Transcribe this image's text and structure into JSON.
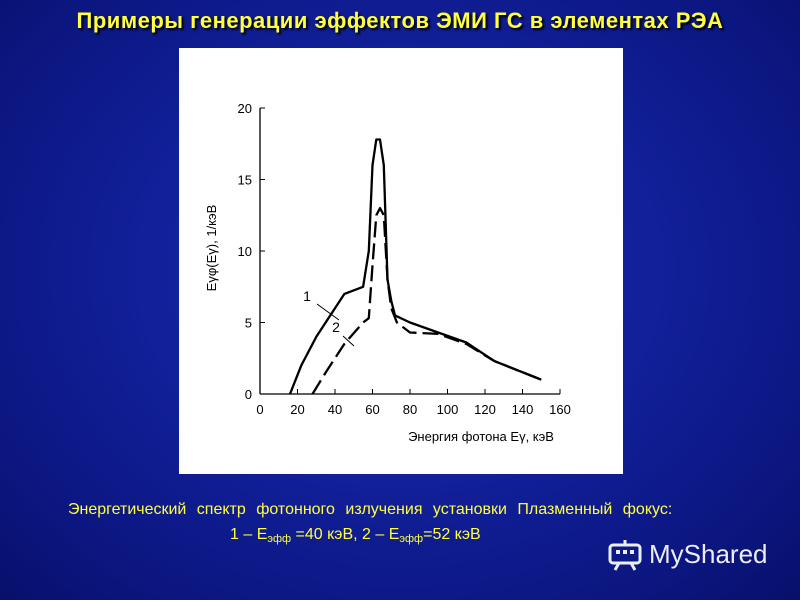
{
  "slide": {
    "title": "Примеры генерации эффектов ЭМИ ГС в элементах РЭА"
  },
  "caption": {
    "line1": "Энергетический спектр фотонного излучения установки Плазменный фокус:",
    "line2_part1": "1 – E",
    "sub1": "эфф",
    "line2_part2": " =40 кэВ, 2 – E",
    "sub2": "эфф",
    "line2_part3": "=52 кэВ"
  },
  "watermark": {
    "text": "MyShared"
  },
  "colors": {
    "background": "#12209a",
    "title": "#ffff40",
    "caption": "#ffff40"
  },
  "chart_data": {
    "type": "line",
    "xlabel": "Энергия фотона Eγ, кэВ",
    "ylabel": "Eγφ(Eγ), 1/кэВ",
    "xlim": [
      0,
      160
    ],
    "ylim": [
      0,
      20
    ],
    "xticks": [
      0,
      20,
      40,
      60,
      80,
      100,
      120,
      140,
      160
    ],
    "yticks": [
      0,
      5,
      10,
      15,
      20
    ],
    "series": [
      {
        "name": "1",
        "style": "solid",
        "x": [
          16,
          22,
          30,
          45,
          55,
          58,
          60,
          62,
          64,
          66,
          68,
          70,
          72,
          80,
          95,
          110,
          125,
          150
        ],
        "y": [
          0,
          2,
          4,
          7,
          7.5,
          10,
          16,
          17.8,
          17.8,
          16,
          8,
          6.5,
          5.5,
          5,
          4.3,
          3.6,
          2.3,
          1
        ]
      },
      {
        "name": "2",
        "style": "dashed",
        "x": [
          28,
          35,
          45,
          55,
          58,
          60,
          62,
          64,
          66,
          68,
          70,
          73,
          80,
          95,
          110,
          125,
          150
        ],
        "y": [
          0,
          1.5,
          3.5,
          5,
          5.3,
          9,
          12.5,
          13,
          12.5,
          8,
          6,
          5,
          4.3,
          4.2,
          3.5,
          2.3,
          1
        ]
      }
    ],
    "annotations": [
      "1",
      "2"
    ]
  }
}
